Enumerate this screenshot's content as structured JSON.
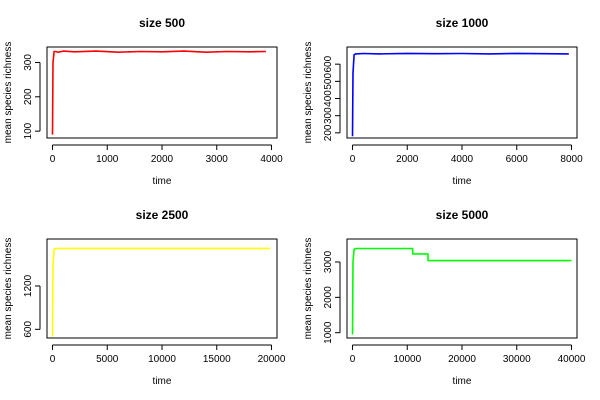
{
  "chart_data": [
    {
      "type": "line",
      "title": "size 500",
      "xlabel": "time",
      "ylabel": "mean species richness",
      "xlim": [
        -100,
        4100
      ],
      "ylim": [
        80,
        345
      ],
      "xticks": [
        0,
        1000,
        2000,
        3000,
        4000
      ],
      "yticks": [
        100,
        200,
        300
      ],
      "grid": false,
      "series": [
        {
          "color": "#ff0000",
          "x": [
            0,
            10,
            30,
            60,
            100,
            200,
            400,
            800,
            1200,
            1600,
            2000,
            2400,
            2800,
            3200,
            3600,
            3900
          ],
          "y": [
            90,
            300,
            332,
            332,
            330,
            333,
            331,
            333,
            330,
            332,
            331,
            333,
            330,
            332,
            331,
            332
          ]
        }
      ]
    },
    {
      "type": "line",
      "title": "size 1000",
      "xlabel": "time",
      "ylabel": "mean species richness",
      "xlim": [
        -200,
        8200
      ],
      "ylim": [
        170,
        700
      ],
      "xticks": [
        0,
        2000,
        4000,
        6000,
        8000
      ],
      "yticks": [
        200,
        300,
        400,
        500,
        600
      ],
      "grid": false,
      "series": [
        {
          "color": "#0000ff",
          "x": [
            0,
            20,
            60,
            120,
            400,
            1000,
            2000,
            3000,
            4000,
            5000,
            6000,
            7000,
            7900
          ],
          "y": [
            180,
            550,
            655,
            660,
            662,
            660,
            663,
            661,
            662,
            660,
            663,
            661,
            660
          ]
        }
      ]
    },
    {
      "type": "line",
      "title": "size 2500",
      "xlabel": "time",
      "ylabel": "mean species richness",
      "xlim": [
        -500,
        20500
      ],
      "ylim": [
        480,
        1850
      ],
      "xticks": [
        0,
        5000,
        10000,
        15000,
        20000
      ],
      "yticks": [
        600,
        1200
      ],
      "grid": false,
      "series": [
        {
          "color": "#ffff00",
          "x": [
            0,
            50,
            150,
            300,
            2000,
            5000,
            10000,
            15000,
            19900
          ],
          "y": [
            500,
            1500,
            1710,
            1718,
            1720,
            1720,
            1720,
            1720,
            1720
          ]
        }
      ]
    },
    {
      "type": "line",
      "title": "size 5000",
      "xlabel": "time",
      "ylabel": "mean species richness",
      "xlim": [
        -1000,
        41000
      ],
      "ylim": [
        850,
        3650
      ],
      "xticks": [
        0,
        10000,
        20000,
        30000,
        40000
      ],
      "yticks": [
        1000,
        2000,
        3000
      ],
      "grid": false,
      "series": [
        {
          "color": "#00ff00",
          "x": [
            0,
            100,
            300,
            600,
            11000,
            11000,
            13800,
            13800,
            40000
          ],
          "y": [
            950,
            3000,
            3360,
            3380,
            3380,
            3230,
            3230,
            3040,
            3040
          ]
        }
      ]
    }
  ]
}
